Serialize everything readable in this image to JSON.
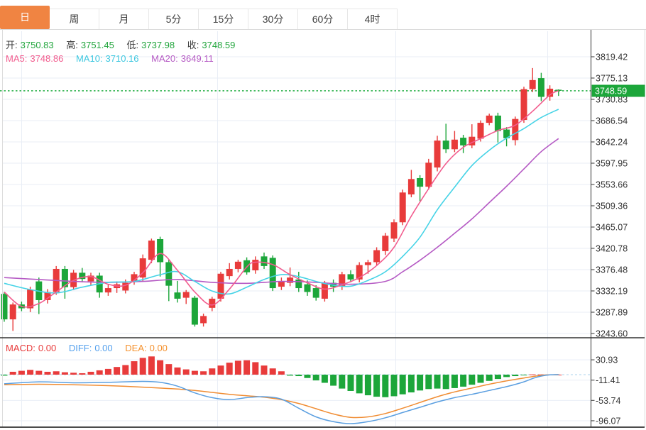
{
  "tabs": {
    "items": [
      {
        "label": "日",
        "active": true
      },
      {
        "label": "周",
        "active": false
      },
      {
        "label": "月",
        "active": false
      },
      {
        "label": "5分",
        "active": false
      },
      {
        "label": "15分",
        "active": false
      },
      {
        "label": "30分",
        "active": false
      },
      {
        "label": "60分",
        "active": false
      },
      {
        "label": "4时",
        "active": false
      }
    ]
  },
  "header": {
    "open_label": "开:",
    "open_value": "3750.83",
    "high_label": "高:",
    "high_value": "3751.45",
    "low_label": "低:",
    "low_value": "3737.98",
    "close_label": "收:",
    "close_value": "3748.59"
  },
  "ma_header": {
    "ma5_label": "MA5:",
    "ma5_value": "3748.86",
    "ma10_label": "MA10:",
    "ma10_value": "3710.16",
    "ma20_label": "MA20:",
    "ma20_value": "3649.11"
  },
  "macd_header": {
    "macd_label": "MACD:",
    "macd_value": "0.00",
    "diff_label": "DIFF:",
    "diff_value": "0.00",
    "dea_label": "DEA:",
    "dea_value": "0.00"
  },
  "colors": {
    "up": "#e83b3b",
    "down": "#1ca63a",
    "accent_tab": "#f08442",
    "ma5": "#f25c8e",
    "ma10": "#45d3e6",
    "ma20": "#b55ac4",
    "diff_line": "#5b9fe0",
    "dea_line": "#f08c32",
    "grid": "#e9eef6",
    "axis": "#444444",
    "label": "#333333",
    "last_price_line": "#2ab14a",
    "badge_bg": "#1ca63a",
    "badge_text": "#ffffff"
  },
  "chart_data": {
    "type": "candlestick",
    "x_count": 65,
    "price_panel": {
      "last_price": 3748.59,
      "axis_ticks": [
        3819.42,
        3775.13,
        3730.83,
        3686.54,
        3642.24,
        3597.95,
        3553.66,
        3509.36,
        3465.07,
        3420.78,
        3376.48,
        3332.19,
        3287.89,
        3243.6
      ],
      "candles_ohlc": [
        [
          3326,
          3330,
          3268,
          3273
        ],
        [
          3273,
          3308,
          3249,
          3304
        ],
        [
          3304,
          3310,
          3290,
          3296
        ],
        [
          3296,
          3341,
          3288,
          3335
        ],
        [
          3352,
          3360,
          3284,
          3313
        ],
        [
          3313,
          3336,
          3306,
          3330
        ],
        [
          3330,
          3384,
          3324,
          3378
        ],
        [
          3378,
          3384,
          3316,
          3340
        ],
        [
          3340,
          3376,
          3334,
          3370
        ],
        [
          3370,
          3380,
          3350,
          3357
        ],
        [
          3352,
          3370,
          3344,
          3364
        ],
        [
          3364,
          3370,
          3318,
          3329
        ],
        [
          3329,
          3345,
          3322,
          3338
        ],
        [
          3338,
          3352,
          3328,
          3346
        ],
        [
          3333,
          3356,
          3327,
          3349
        ],
        [
          3351,
          3372,
          3345,
          3367
        ],
        [
          3360,
          3408,
          3352,
          3400
        ],
        [
          3397,
          3441,
          3390,
          3437
        ],
        [
          3440,
          3445,
          3362,
          3392
        ],
        [
          3392,
          3398,
          3311,
          3343
        ],
        [
          3329,
          3353,
          3308,
          3316
        ],
        [
          3318,
          3334,
          3305,
          3330
        ],
        [
          3318,
          3322,
          3258,
          3262
        ],
        [
          3265,
          3285,
          3258,
          3280
        ],
        [
          3297,
          3320,
          3290,
          3316
        ],
        [
          3316,
          3372,
          3310,
          3368
        ],
        [
          3363,
          3390,
          3356,
          3378
        ],
        [
          3378,
          3397,
          3371,
          3393
        ],
        [
          3396,
          3402,
          3366,
          3371
        ],
        [
          3375,
          3404,
          3368,
          3397
        ],
        [
          3404,
          3412,
          3378,
          3384
        ],
        [
          3401,
          3406,
          3332,
          3338
        ],
        [
          3341,
          3360,
          3334,
          3352
        ],
        [
          3349,
          3381,
          3342,
          3360
        ],
        [
          3356,
          3372,
          3330,
          3338
        ],
        [
          3346,
          3354,
          3322,
          3330
        ],
        [
          3338,
          3344,
          3312,
          3318
        ],
        [
          3316,
          3353,
          3310,
          3349
        ],
        [
          3349,
          3356,
          3330,
          3341
        ],
        [
          3341,
          3372,
          3334,
          3367
        ],
        [
          3367,
          3375,
          3350,
          3356
        ],
        [
          3356,
          3392,
          3350,
          3386
        ],
        [
          3386,
          3397,
          3368,
          3392
        ],
        [
          3392,
          3423,
          3386,
          3417
        ],
        [
          3415,
          3453,
          3407,
          3447
        ],
        [
          3441,
          3481,
          3434,
          3475
        ],
        [
          3475,
          3543,
          3469,
          3537
        ],
        [
          3533,
          3584,
          3527,
          3565
        ],
        [
          3567,
          3573,
          3519,
          3549
        ],
        [
          3549,
          3607,
          3543,
          3599
        ],
        [
          3589,
          3655,
          3581,
          3645
        ],
        [
          3645,
          3680,
          3619,
          3627
        ],
        [
          3627,
          3665,
          3621,
          3647
        ],
        [
          3651,
          3657,
          3619,
          3635
        ],
        [
          3635,
          3679,
          3629,
          3653
        ],
        [
          3649,
          3687,
          3643,
          3682
        ],
        [
          3682,
          3701,
          3677,
          3697
        ],
        [
          3697,
          3703,
          3641,
          3665
        ],
        [
          3668,
          3673,
          3633,
          3650
        ],
        [
          3646,
          3695,
          3635,
          3690
        ],
        [
          3688,
          3757,
          3682,
          3752
        ],
        [
          3752,
          3796,
          3746,
          3771
        ],
        [
          3775,
          3786,
          3727,
          3736
        ],
        [
          3736,
          3760,
          3728,
          3753
        ],
        [
          3750.83,
          3751.45,
          3737.98,
          3748.59
        ]
      ],
      "ma5_points": [
        [
          0,
          3330
        ],
        [
          2,
          3300
        ],
        [
          4,
          3306
        ],
        [
          6,
          3330
        ],
        [
          8,
          3354
        ],
        [
          10,
          3362
        ],
        [
          12,
          3346
        ],
        [
          14,
          3344
        ],
        [
          16,
          3370
        ],
        [
          18,
          3410
        ],
        [
          20,
          3375
        ],
        [
          22,
          3330
        ],
        [
          24,
          3303
        ],
        [
          26,
          3336
        ],
        [
          28,
          3382
        ],
        [
          29,
          3392
        ],
        [
          31,
          3387
        ],
        [
          33,
          3366
        ],
        [
          35,
          3349
        ],
        [
          37,
          3336
        ],
        [
          39,
          3345
        ],
        [
          41,
          3360
        ],
        [
          43,
          3385
        ],
        [
          45,
          3423
        ],
        [
          47,
          3488
        ],
        [
          49,
          3545
        ],
        [
          51,
          3597
        ],
        [
          53,
          3631
        ],
        [
          55,
          3649
        ],
        [
          57,
          3666
        ],
        [
          59,
          3677
        ],
        [
          61,
          3706
        ],
        [
          63,
          3740
        ],
        [
          64,
          3748.86
        ]
      ],
      "ma10_points": [
        [
          0,
          3348
        ],
        [
          3,
          3335
        ],
        [
          6,
          3328
        ],
        [
          9,
          3340
        ],
        [
          12,
          3350
        ],
        [
          15,
          3352
        ],
        [
          18,
          3366
        ],
        [
          20,
          3372
        ],
        [
          22,
          3352
        ],
        [
          24,
          3332
        ],
        [
          26,
          3326
        ],
        [
          28,
          3340
        ],
        [
          30,
          3356
        ],
        [
          32,
          3366
        ],
        [
          34,
          3362
        ],
        [
          36,
          3352
        ],
        [
          38,
          3344
        ],
        [
          40,
          3342
        ],
        [
          42,
          3354
        ],
        [
          44,
          3372
        ],
        [
          46,
          3404
        ],
        [
          48,
          3444
        ],
        [
          50,
          3501
        ],
        [
          52,
          3548
        ],
        [
          54,
          3593
        ],
        [
          56,
          3625
        ],
        [
          58,
          3650
        ],
        [
          60,
          3670
        ],
        [
          62,
          3693
        ],
        [
          64,
          3710.16
        ]
      ],
      "ma20_points": [
        [
          0,
          3360
        ],
        [
          4,
          3356
        ],
        [
          8,
          3352
        ],
        [
          12,
          3350
        ],
        [
          16,
          3352
        ],
        [
          20,
          3356
        ],
        [
          24,
          3350
        ],
        [
          28,
          3348
        ],
        [
          32,
          3352
        ],
        [
          36,
          3350
        ],
        [
          40,
          3346
        ],
        [
          44,
          3352
        ],
        [
          46,
          3372
        ],
        [
          48,
          3396
        ],
        [
          50,
          3423
        ],
        [
          52,
          3452
        ],
        [
          54,
          3482
        ],
        [
          56,
          3516
        ],
        [
          58,
          3550
        ],
        [
          60,
          3586
        ],
        [
          62,
          3622
        ],
        [
          64,
          3649.11
        ]
      ]
    },
    "macd_panel": {
      "axis_ticks": [
        30.93,
        -11.41,
        -53.74,
        -96.07
      ],
      "histogram": [
        -2,
        6,
        8,
        10,
        8,
        6,
        7,
        5,
        4,
        3,
        6,
        9,
        12,
        16,
        20,
        28,
        35,
        38,
        30,
        22,
        15,
        11,
        8,
        7,
        13,
        19,
        25,
        29,
        30,
        26,
        19,
        13,
        7,
        -2,
        -3,
        -7,
        -12,
        -17,
        -23,
        -29,
        -34,
        -39,
        -43,
        -46,
        -47,
        -45,
        -41,
        -37,
        -33,
        -30,
        -29,
        -30,
        -28,
        -25,
        -21,
        -17,
        -13,
        -9,
        -5,
        -3,
        -1.5,
        0.5,
        0.4,
        0.3,
        0
      ],
      "diff_points": [
        [
          0,
          -19
        ],
        [
          4,
          -15
        ],
        [
          8,
          -17
        ],
        [
          12,
          -16
        ],
        [
          16,
          -14
        ],
        [
          18,
          -16
        ],
        [
          20,
          -24
        ],
        [
          22,
          -38
        ],
        [
          24,
          -48
        ],
        [
          26,
          -52
        ],
        [
          28,
          -48
        ],
        [
          30,
          -46
        ],
        [
          32,
          -51
        ],
        [
          34,
          -70
        ],
        [
          36,
          -88
        ],
        [
          38,
          -98
        ],
        [
          40,
          -102
        ],
        [
          42,
          -98
        ],
        [
          44,
          -90
        ],
        [
          46,
          -79
        ],
        [
          48,
          -68
        ],
        [
          50,
          -57
        ],
        [
          52,
          -48
        ],
        [
          54,
          -41
        ],
        [
          56,
          -33
        ],
        [
          58,
          -25
        ],
        [
          60,
          -15
        ],
        [
          61,
          -8
        ],
        [
          62,
          -3
        ],
        [
          63,
          -0.5
        ],
        [
          64,
          0
        ]
      ],
      "dea_points": [
        [
          0,
          -21
        ],
        [
          4,
          -20
        ],
        [
          8,
          -21
        ],
        [
          12,
          -23
        ],
        [
          16,
          -26
        ],
        [
          20,
          -30
        ],
        [
          22,
          -33
        ],
        [
          24,
          -37
        ],
        [
          26,
          -41
        ],
        [
          28,
          -44
        ],
        [
          30,
          -47
        ],
        [
          32,
          -52
        ],
        [
          34,
          -60
        ],
        [
          36,
          -71
        ],
        [
          38,
          -82
        ],
        [
          40,
          -89
        ],
        [
          42,
          -88
        ],
        [
          44,
          -81
        ],
        [
          46,
          -70
        ],
        [
          48,
          -58
        ],
        [
          50,
          -46
        ],
        [
          52,
          -36
        ],
        [
          54,
          -28
        ],
        [
          56,
          -20
        ],
        [
          58,
          -13
        ],
        [
          60,
          -7
        ],
        [
          61,
          -4
        ],
        [
          62,
          -1.5
        ],
        [
          63,
          -0.5
        ],
        [
          64,
          0
        ]
      ]
    }
  }
}
